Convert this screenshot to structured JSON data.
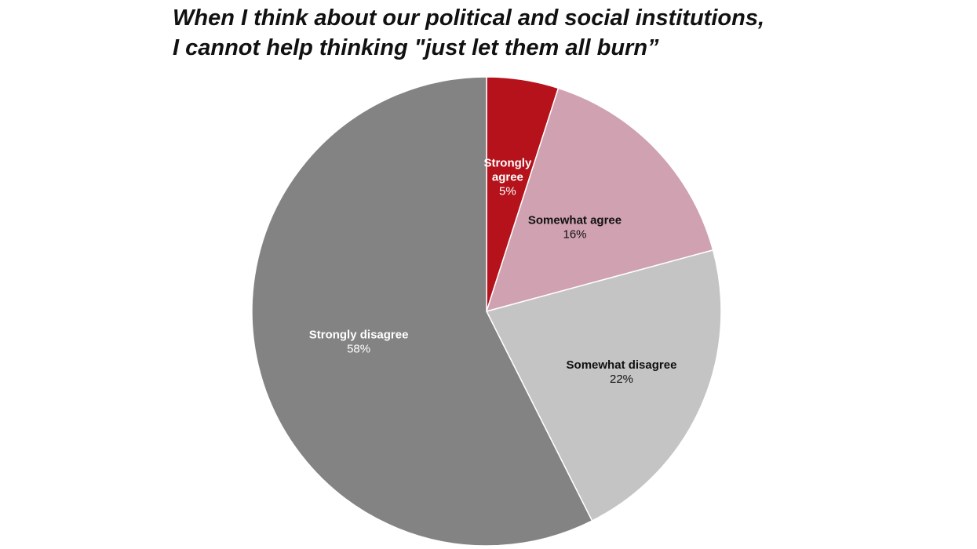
{
  "chart_data": {
    "type": "pie",
    "title_lines": [
      "When I think about our political and social institutions,",
      "I cannot help thinking \"just let them all burn”"
    ],
    "slices": [
      {
        "label": "Strongly agree",
        "label_lines": [
          "Strongly",
          "agree"
        ],
        "value": 5,
        "value_label": "5%",
        "color": "#b5121b",
        "label_color": "#ffffff"
      },
      {
        "label": "Somewhat agree",
        "label_lines": [
          "Somewhat agree"
        ],
        "value": 16,
        "value_label": "16%",
        "color": "#d0a1b0",
        "label_color": "#111111"
      },
      {
        "label": "Somewhat disagree",
        "label_lines": [
          "Somewhat disagree"
        ],
        "value": 22,
        "value_label": "22%",
        "color": "#c4c4c4",
        "label_color": "#111111"
      },
      {
        "label": "Strongly disagree",
        "label_lines": [
          "Strongly disagree"
        ],
        "value": 58,
        "value_label": "58%",
        "color": "#838383",
        "label_color": "#ffffff"
      }
    ],
    "start_angle": "12 o'clock",
    "direction": "clockwise",
    "legend": "none",
    "labels_inside": true
  }
}
